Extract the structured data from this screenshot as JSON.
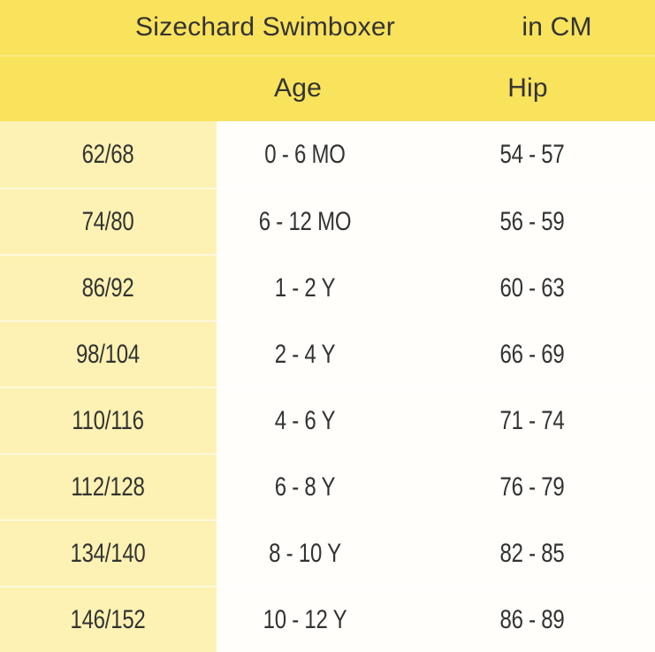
{
  "colors": {
    "header_yellow": "#f9e25c",
    "size_col_yellow": "#fdf2b3",
    "body_bg": "#fffefb",
    "text": "#333333"
  },
  "header": {
    "title": "Sizechard Swimboxer",
    "unit": "in CM",
    "age_label": "Age",
    "hip_label": "Hip"
  },
  "chart_data": {
    "type": "table",
    "title": "Sizechard Swimboxer",
    "unit": "in CM",
    "columns": [
      "Age",
      "Hip"
    ],
    "rows": [
      {
        "size": "62/68",
        "age": "0 - 6 MO",
        "hip": "54 - 57"
      },
      {
        "size": "74/80",
        "age": "6 - 12 MO",
        "hip": "56 - 59"
      },
      {
        "size": "86/92",
        "age": "1 - 2 Y",
        "hip": "60 - 63"
      },
      {
        "size": "98/104",
        "age": "2 - 4 Y",
        "hip": "66 - 69"
      },
      {
        "size": "110/116",
        "age": "4 - 6 Y",
        "hip": "71 - 74"
      },
      {
        "size": "112/128",
        "age": "6 - 8 Y",
        "hip": "76 - 79"
      },
      {
        "size": "134/140",
        "age": "8 - 10 Y",
        "hip": "82 - 85"
      },
      {
        "size": "146/152",
        "age": "10 - 12 Y",
        "hip": "86 - 89"
      }
    ]
  }
}
